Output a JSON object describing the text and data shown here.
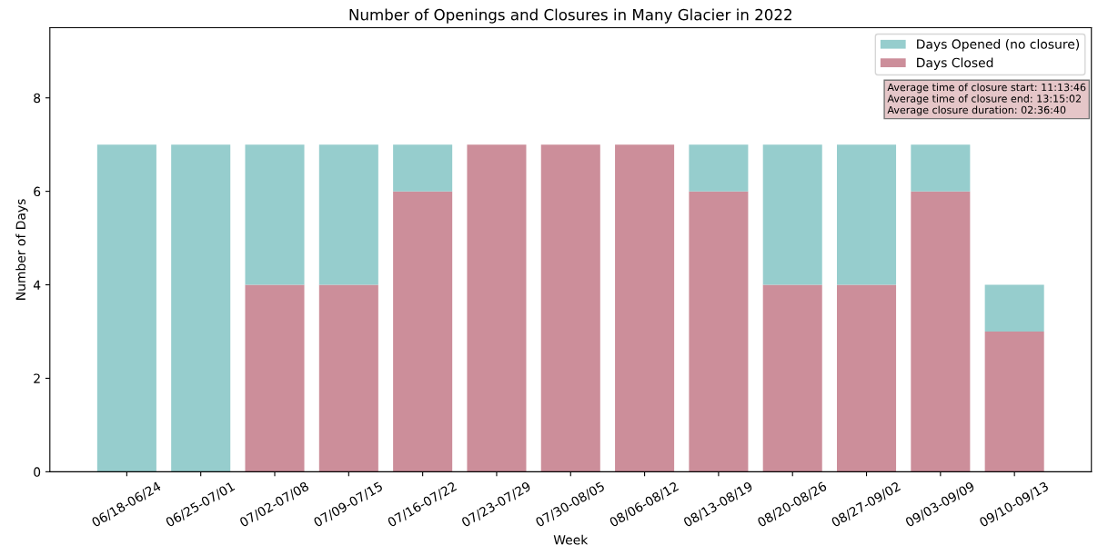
{
  "chart_data": {
    "type": "bar",
    "title": "Number of Openings and Closures in Many Glacier in 2022",
    "xlabel": "Week",
    "ylabel": "Number of Days",
    "categories": [
      "06/18-06/24",
      "06/25-07/01",
      "07/02-07/08",
      "07/09-07/15",
      "07/16-07/22",
      "07/23-07/29",
      "07/30-08/05",
      "08/06-08/12",
      "08/13-08/19",
      "08/20-08/26",
      "08/27-09/02",
      "09/03-09/09",
      "09/10-09/13"
    ],
    "stacked": true,
    "series": [
      {
        "name": "Days Closed",
        "color": "#cc8e9a",
        "values": [
          0,
          0,
          4,
          4,
          6,
          7,
          7,
          7,
          6,
          4,
          4,
          6,
          3
        ]
      },
      {
        "name": "Days Opened (no closure)",
        "color": "#96cdcd",
        "values": [
          7,
          7,
          3,
          3,
          1,
          0,
          0,
          0,
          1,
          3,
          3,
          1,
          1
        ]
      }
    ],
    "ylim": [
      0,
      9.5
    ],
    "yticks": [
      0,
      2,
      4,
      6,
      8
    ],
    "grid": false,
    "legend": "top right",
    "annotations": [
      "Average time of closure start: 11:13:46\nAverage time of closure end: 13:15:02\nAverage closure duration: 02:36:40"
    ]
  }
}
